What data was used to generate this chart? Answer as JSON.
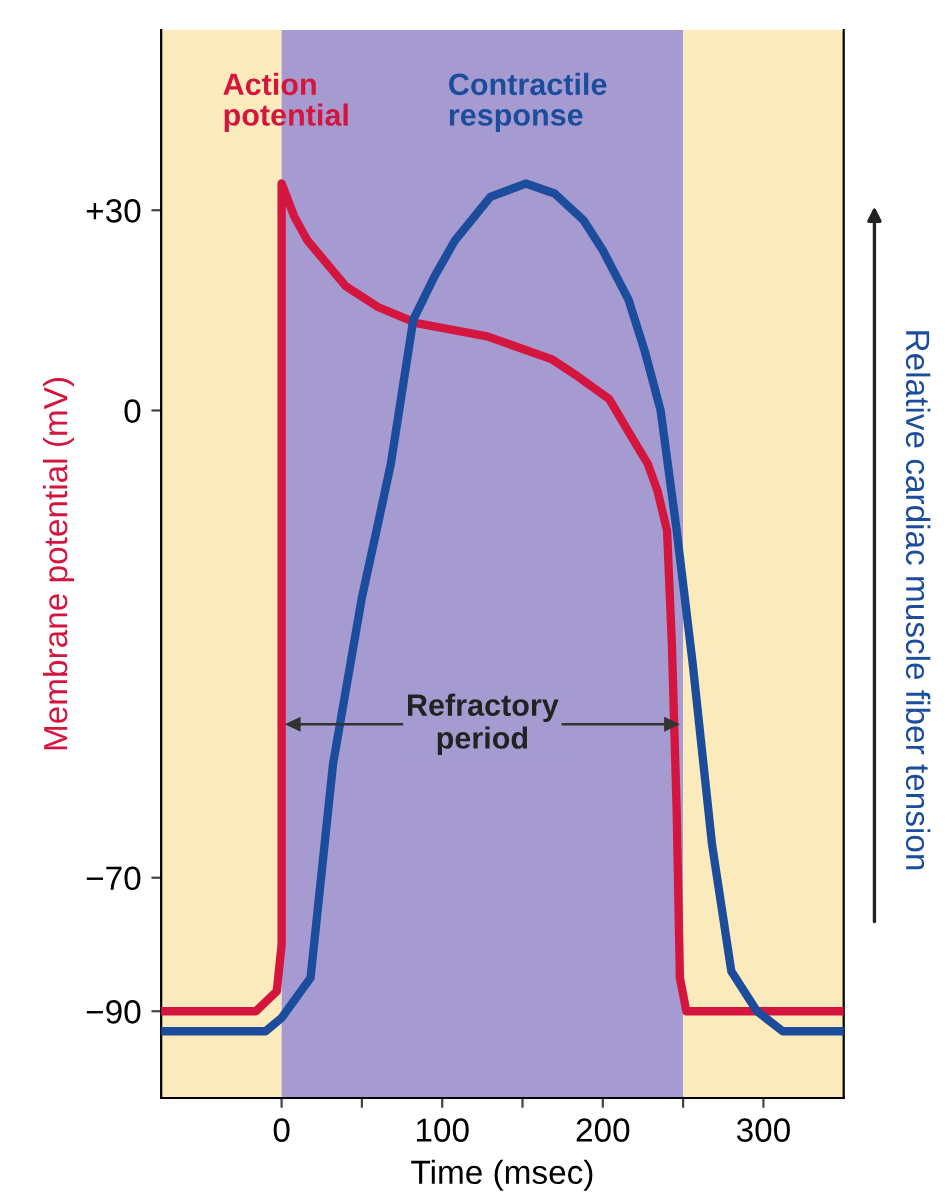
{
  "chart_data": {
    "type": "line",
    "xlabel": "Time (msec)",
    "ylabel": "Membrane potential (mV)",
    "y2label": "Relative cardiac muscle fiber tension",
    "xlim": [
      -75,
      350
    ],
    "ylim": [
      -103,
      57
    ],
    "xticks": [
      0,
      {
        "value": 50,
        "label": null
      },
      100,
      {
        "value": 150,
        "label": null
      },
      200,
      {
        "value": 250,
        "label": null
      },
      300
    ],
    "yticks": [
      {
        "value": 30,
        "label": "+30"
      },
      0,
      {
        "value": -70,
        "label": "−70"
      },
      {
        "value": -90,
        "label": "−90"
      }
    ],
    "series": [
      {
        "name": "Action potential",
        "color": "#d4163f",
        "x": [
          -75,
          -16,
          -3,
          0,
          0,
          8,
          16,
          40,
          60,
          84,
          128,
          168,
          185,
          204,
          218,
          228,
          234,
          240,
          243,
          246,
          248,
          252,
          350
        ],
        "values": [
          -90,
          -90,
          -87,
          -80,
          34,
          29,
          25.5,
          18.6,
          15.5,
          13.1,
          11.1,
          7.7,
          5,
          1.7,
          -4,
          -8,
          -12,
          -18,
          -35,
          -60,
          -85,
          -90,
          -90
        ]
      },
      {
        "name": "Contractile response",
        "color": "#1c4c9c",
        "x": [
          -75,
          -10,
          0,
          18,
          32,
          50,
          60,
          68,
          82,
          95,
          108,
          130,
          152,
          170,
          188,
          200,
          216,
          226,
          236,
          246,
          256,
          268,
          280,
          296,
          312,
          350
        ],
        "values": [
          -93,
          -93,
          -91,
          -85,
          -53,
          -28,
          -17,
          -8,
          13.6,
          20,
          25.5,
          32,
          34,
          32.5,
          28.5,
          24,
          16.6,
          9,
          0,
          -18,
          -38,
          -65,
          -84,
          -90,
          -93,
          -93
        ]
      }
    ],
    "bands": [
      {
        "axis": "x",
        "from": -75,
        "to": 0,
        "color": "#fbeabb"
      },
      {
        "axis": "x",
        "from": 0,
        "to": 250,
        "color": "#a59bd1",
        "label": "Refractory\nperiod"
      },
      {
        "axis": "x",
        "from": 250,
        "to": 350,
        "color": "#fbeabb"
      }
    ],
    "grid": false,
    "legend": false,
    "marker": "none",
    "line_style": "solid"
  }
}
